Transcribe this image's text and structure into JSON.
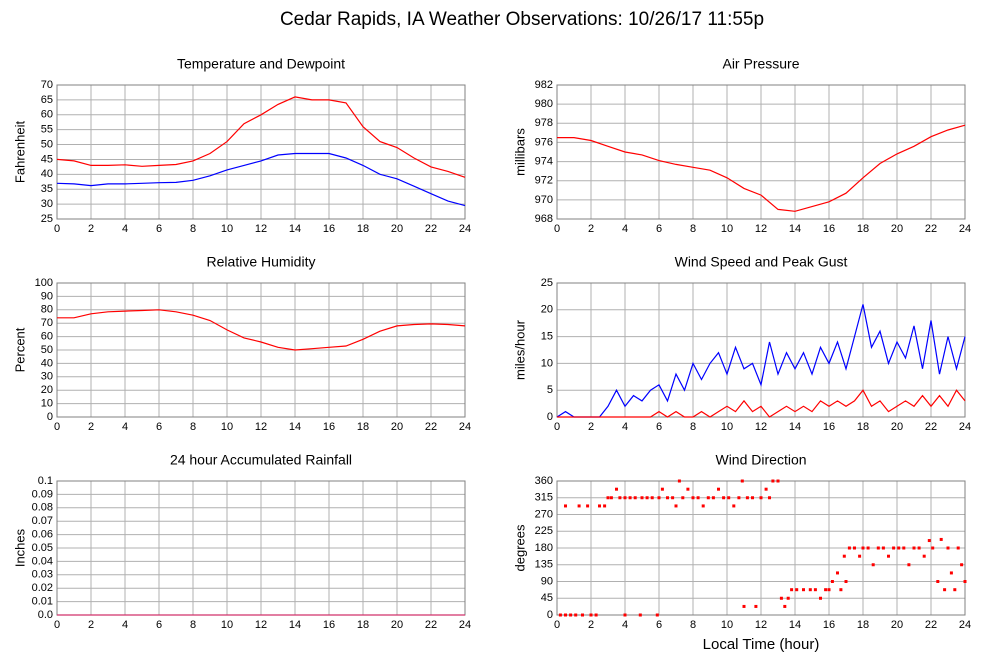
{
  "title": "Cedar Rapids, IA Weather Observations: 10/26/17 11:55p",
  "chart_data": [
    {
      "type": "line",
      "title": "Temperature and Dewpoint",
      "ylabel": "Fahrenheit",
      "x": [
        0,
        1,
        2,
        3,
        4,
        5,
        6,
        7,
        8,
        9,
        10,
        11,
        12,
        13,
        14,
        15,
        16,
        17,
        18,
        19,
        20,
        21,
        22,
        23,
        24
      ],
      "series": [
        {
          "color": "#ff0000",
          "values": [
            45,
            44.5,
            43,
            43,
            43.2,
            42.7,
            43,
            43.3,
            44.5,
            47,
            51,
            57,
            60,
            63.5,
            66,
            65,
            65,
            64,
            56,
            51,
            49,
            45.5,
            42.5,
            41,
            39
          ]
        },
        {
          "color": "#0000ff",
          "values": [
            37,
            36.8,
            36.2,
            36.8,
            36.8,
            37,
            37.2,
            37.3,
            38,
            39.5,
            41.5,
            43,
            44.5,
            46.5,
            47,
            47,
            47,
            45.5,
            43,
            40,
            38.5,
            36,
            33.5,
            31,
            29.5
          ]
        }
      ],
      "xlim": [
        0,
        24
      ],
      "xticks": [
        0,
        2,
        4,
        6,
        8,
        10,
        12,
        14,
        16,
        18,
        20,
        22,
        24
      ],
      "ylim": [
        25,
        70
      ],
      "yticks": [
        25,
        30,
        35,
        40,
        45,
        50,
        55,
        60,
        65,
        70
      ],
      "grid": true
    },
    {
      "type": "line",
      "title": "Air Pressure",
      "ylabel": "millibars",
      "x": [
        0,
        1,
        2,
        3,
        4,
        5,
        6,
        7,
        8,
        9,
        10,
        11,
        12,
        13,
        14,
        15,
        16,
        17,
        18,
        19,
        20,
        21,
        22,
        23,
        24
      ],
      "series": [
        {
          "color": "#ff0000",
          "values": [
            976.5,
            976.5,
            976.2,
            975.6,
            975,
            974.7,
            974.1,
            973.7,
            973.4,
            973.1,
            972.3,
            971.2,
            970.5,
            969,
            968.8,
            969.3,
            969.8,
            970.7,
            972.3,
            973.8,
            974.8,
            975.6,
            976.6,
            977.3,
            977.8
          ]
        }
      ],
      "xlim": [
        0,
        24
      ],
      "xticks": [
        0,
        2,
        4,
        6,
        8,
        10,
        12,
        14,
        16,
        18,
        20,
        22,
        24
      ],
      "ylim": [
        968,
        982
      ],
      "yticks": [
        968,
        970,
        972,
        974,
        976,
        978,
        980,
        982
      ],
      "grid": true
    },
    {
      "type": "line",
      "title": "Relative Humidity",
      "ylabel": "Percent",
      "x": [
        0,
        1,
        2,
        3,
        4,
        5,
        6,
        7,
        8,
        9,
        10,
        11,
        12,
        13,
        14,
        15,
        16,
        17,
        18,
        19,
        20,
        21,
        22,
        23,
        24
      ],
      "series": [
        {
          "color": "#ff0000",
          "values": [
            74,
            74,
            77,
            78.5,
            79,
            79.5,
            80,
            78.5,
            76,
            72,
            65,
            59,
            56,
            52,
            50,
            51,
            52,
            53,
            58,
            64,
            68,
            69,
            69.5,
            69,
            68
          ]
        }
      ],
      "xlim": [
        0,
        24
      ],
      "xticks": [
        0,
        2,
        4,
        6,
        8,
        10,
        12,
        14,
        16,
        18,
        20,
        22,
        24
      ],
      "ylim": [
        0,
        100
      ],
      "yticks": [
        0,
        10,
        20,
        30,
        40,
        50,
        60,
        70,
        80,
        90,
        100
      ],
      "grid": true
    },
    {
      "type": "line",
      "title": "Wind Speed and Peak Gust",
      "ylabel": "miles/hour",
      "x": [
        0,
        0.5,
        1,
        1.5,
        2,
        2.5,
        3,
        3.5,
        4,
        4.5,
        5,
        5.5,
        6,
        6.5,
        7,
        7.5,
        8,
        8.5,
        9,
        9.5,
        10,
        10.5,
        11,
        11.5,
        12,
        12.5,
        13,
        13.5,
        14,
        14.5,
        15,
        15.5,
        16,
        16.5,
        17,
        17.5,
        18,
        18.5,
        19,
        19.5,
        20,
        20.5,
        21,
        21.5,
        22,
        22.5,
        23,
        23.5,
        24
      ],
      "series": [
        {
          "color": "#0000ff",
          "values": [
            0,
            1,
            0,
            0,
            0,
            0,
            2,
            5,
            2,
            4,
            3,
            5,
            6,
            3,
            8,
            5,
            10,
            7,
            10,
            12,
            8,
            13,
            9,
            10,
            6,
            14,
            8,
            12,
            9,
            12,
            8,
            13,
            10,
            14,
            9,
            15,
            21,
            13,
            16,
            10,
            14,
            11,
            17,
            9,
            18,
            8,
            15,
            9,
            15
          ]
        },
        {
          "color": "#ff0000",
          "values": [
            0,
            0,
            0,
            0,
            0,
            0,
            0,
            0,
            0,
            0,
            0,
            0,
            1,
            0,
            1,
            0,
            0,
            1,
            0,
            1,
            2,
            1,
            3,
            1,
            2,
            0,
            1,
            2,
            1,
            2,
            1,
            3,
            2,
            3,
            2,
            3,
            5,
            2,
            3,
            1,
            2,
            3,
            2,
            4,
            2,
            4,
            2,
            5,
            3
          ]
        }
      ],
      "xlim": [
        0,
        24
      ],
      "xticks": [
        0,
        2,
        4,
        6,
        8,
        10,
        12,
        14,
        16,
        18,
        20,
        22,
        24
      ],
      "ylim": [
        0,
        25
      ],
      "yticks": [
        0,
        5,
        10,
        15,
        20,
        25
      ],
      "grid": true
    },
    {
      "type": "line",
      "title": "24 hour Accumulated Rainfall",
      "ylabel": "Inches",
      "x": [
        0,
        1,
        2,
        3,
        4,
        5,
        6,
        7,
        8,
        9,
        10,
        11,
        12,
        13,
        14,
        15,
        16,
        17,
        18,
        19,
        20,
        21,
        22,
        23,
        24
      ],
      "series": [
        {
          "color": "#d0306a",
          "values": [
            0,
            0,
            0,
            0,
            0,
            0,
            0,
            0,
            0,
            0,
            0,
            0,
            0,
            0,
            0,
            0,
            0,
            0,
            0,
            0,
            0,
            0,
            0,
            0,
            0
          ]
        }
      ],
      "xlim": [
        0,
        24
      ],
      "xticks": [
        0,
        2,
        4,
        6,
        8,
        10,
        12,
        14,
        16,
        18,
        20,
        22,
        24
      ],
      "ylim": [
        0,
        0.1
      ],
      "yticks": [
        {
          "value": 0,
          "label": "0.0"
        },
        0.01,
        0.02,
        0.03,
        0.04,
        0.05,
        0.06,
        0.07,
        0.08,
        0.09,
        0.1
      ],
      "grid": true
    },
    {
      "type": "scatter",
      "title": "Wind Direction",
      "ylabel": "degrees",
      "xlabel": "Local Time (hour)",
      "x": [
        0.2,
        0.5,
        0.5,
        0.8,
        1.1,
        1.3,
        1.5,
        1.8,
        2,
        2.3,
        2.5,
        2.8,
        3,
        3.2,
        3.5,
        3.7,
        4,
        4,
        4.3,
        4.6,
        4.9,
        5,
        5.3,
        5.6,
        5.9,
        6,
        6.2,
        6.5,
        6.8,
        7,
        7.2,
        7.4,
        7.7,
        8,
        8.3,
        8.6,
        8.9,
        9.2,
        9.5,
        9.8,
        10.1,
        10.4,
        10.7,
        10.9,
        11,
        11.2,
        11.5,
        11.7,
        12,
        12.3,
        12.5,
        12.7,
        13,
        13.2,
        13.4,
        13.6,
        13.8,
        14.1,
        14.5,
        14.9,
        15.2,
        15.5,
        15.8,
        16,
        16.2,
        16.5,
        16.7,
        16.9,
        17,
        17.2,
        17.5,
        17.8,
        18,
        18.3,
        18.6,
        18.9,
        19.2,
        19.5,
        19.8,
        20.1,
        20.4,
        20.7,
        21,
        21.3,
        21.6,
        21.9,
        22.1,
        22.4,
        22.6,
        22.8,
        23,
        23.2,
        23.4,
        23.6,
        23.8,
        24
      ],
      "series": [
        {
          "color": "#ff0000",
          "values": [
            0,
            0,
            293,
            0,
            0,
            293,
            0,
            293,
            0,
            0,
            293,
            293,
            315,
            315,
            338,
            315,
            315,
            0,
            315,
            315,
            0,
            315,
            315,
            315,
            0,
            315,
            338,
            315,
            315,
            293,
            360,
            315,
            338,
            315,
            315,
            293,
            315,
            315,
            338,
            315,
            315,
            293,
            315,
            360,
            23,
            315,
            315,
            23,
            315,
            338,
            315,
            360,
            360,
            45,
            23,
            45,
            68,
            68,
            68,
            68,
            68,
            45,
            68,
            68,
            90,
            113,
            68,
            158,
            90,
            180,
            180,
            158,
            180,
            180,
            135,
            180,
            180,
            158,
            180,
            180,
            180,
            135,
            180,
            180,
            158,
            200,
            180,
            90,
            203,
            68,
            180,
            113,
            68,
            180,
            135,
            90
          ]
        }
      ],
      "xlim": [
        0,
        24
      ],
      "xticks": [
        0,
        2,
        4,
        6,
        8,
        10,
        12,
        14,
        16,
        18,
        20,
        22,
        24
      ],
      "ylim": [
        0,
        360
      ],
      "yticks": [
        0,
        45,
        90,
        135,
        180,
        225,
        270,
        315,
        360
      ],
      "grid": true
    }
  ]
}
